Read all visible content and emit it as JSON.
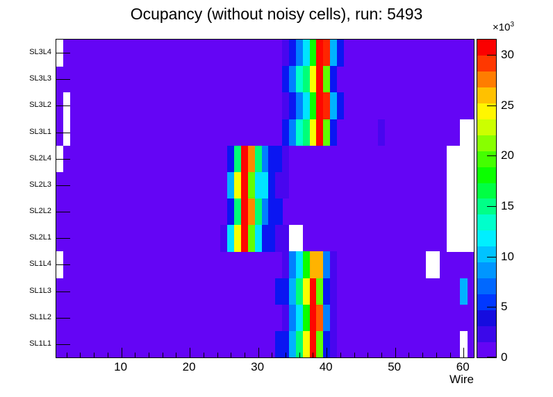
{
  "chart_data": {
    "type": "heatmap",
    "title": "Ocupancy (without noisy cells), run: 5493",
    "xlabel": "Wire",
    "x_range": [
      0.5,
      61.5
    ],
    "x_major_ticks": [
      10,
      20,
      30,
      40,
      50,
      60
    ],
    "x_minor_tick_step": 2,
    "rows_top_to_bottom": [
      "SL3L4",
      "SL3L3",
      "SL3L2",
      "SL3L1",
      "SL2L4",
      "SL2L3",
      "SL2L2",
      "SL2L1",
      "SL1L4",
      "SL1L3",
      "SL1L2",
      "SL1L1"
    ],
    "background_color": "#6405f5",
    "background_value": 500,
    "palette": {
      "violet": "#4806ef",
      "blue": "#0b16f2",
      "dodger": "#0080ff",
      "deepsky": "#00b2ff",
      "cyan": "#00e4ff",
      "turquoise": "#00ffcb",
      "spring": "#00ff77",
      "green": "#0bff00",
      "chartreuse": "#62ff00",
      "yellow": "#f8ff00",
      "amber": "#ffb300",
      "orange": "#ff8800",
      "orangered": "#ff5c00",
      "red2": "#ff2500",
      "red": "#ff0600",
      "white": "#ffffff"
    },
    "colorbar": {
      "scale_label": "×10",
      "scale_exp": "3",
      "ticks": [
        0,
        5,
        10,
        15,
        20,
        25,
        30
      ],
      "max": 31.5,
      "colors_bottom_to_top": [
        "#6405f5",
        "#3b08ea",
        "#150cdf",
        "#0038ff",
        "#0068ff",
        "#0096ff",
        "#00c3ff",
        "#00efff",
        "#00ffcb",
        "#00ff87",
        "#00ff43",
        "#0bff00",
        "#44ff00",
        "#88ff00",
        "#ccff00",
        "#fff600",
        "#ffc100",
        "#ff7d00",
        "#ff3800",
        "#fb0000"
      ]
    },
    "cells": [
      {
        "row": "SL3L4",
        "wire": 34,
        "color": "violet",
        "value": 2000
      },
      {
        "row": "SL3L4",
        "wire": 35,
        "color": "blue",
        "value": 5000
      },
      {
        "row": "SL3L4",
        "wire": 36,
        "color": "dodger",
        "value": 8500
      },
      {
        "row": "SL3L4",
        "wire": 37,
        "color": "cyan",
        "value": 12000
      },
      {
        "row": "SL3L4",
        "wire": 38,
        "color": "green",
        "value": 20000
      },
      {
        "row": "SL3L4",
        "wire": 39,
        "color": "red",
        "value": 31000
      },
      {
        "row": "SL3L4",
        "wire": 40,
        "color": "red2",
        "value": 30000
      },
      {
        "row": "SL3L4",
        "wire": 41,
        "color": "deepsky",
        "value": 10500
      },
      {
        "row": "SL3L4",
        "wire": 42,
        "color": "blue",
        "value": 5000
      },
      {
        "row": "SL3L4",
        "wire": 1,
        "color": "white",
        "value": null
      },
      {
        "row": "SL3L3",
        "wire": 34,
        "color": "blue",
        "value": 5000
      },
      {
        "row": "SL3L3",
        "wire": 35,
        "color": "dodger",
        "value": 8500
      },
      {
        "row": "SL3L3",
        "wire": 36,
        "color": "turquoise",
        "value": 14500
      },
      {
        "row": "SL3L3",
        "wire": 37,
        "color": "spring",
        "value": 16500
      },
      {
        "row": "SL3L3",
        "wire": 38,
        "color": "yellow",
        "value": 26000
      },
      {
        "row": "SL3L3",
        "wire": 39,
        "color": "red",
        "value": 31000
      },
      {
        "row": "SL3L3",
        "wire": 40,
        "color": "chartreuse",
        "value": 22500
      },
      {
        "row": "SL3L3",
        "wire": 41,
        "color": "blue",
        "value": 5000
      },
      {
        "row": "SL3L2",
        "wire": 34,
        "color": "violet",
        "value": 2000
      },
      {
        "row": "SL3L2",
        "wire": 35,
        "color": "blue",
        "value": 5000
      },
      {
        "row": "SL3L2",
        "wire": 36,
        "color": "dodger",
        "value": 8500
      },
      {
        "row": "SL3L2",
        "wire": 37,
        "color": "cyan",
        "value": 12000
      },
      {
        "row": "SL3L2",
        "wire": 38,
        "color": "green",
        "value": 20000
      },
      {
        "row": "SL3L2",
        "wire": 39,
        "color": "red",
        "value": 31000
      },
      {
        "row": "SL3L2",
        "wire": 40,
        "color": "red2",
        "value": 30000
      },
      {
        "row": "SL3L2",
        "wire": 41,
        "color": "deepsky",
        "value": 10500
      },
      {
        "row": "SL3L2",
        "wire": 42,
        "color": "blue",
        "value": 5000
      },
      {
        "row": "SL3L2",
        "wire": 2,
        "color": "white",
        "value": null
      },
      {
        "row": "SL3L1",
        "wire": 34,
        "color": "blue",
        "value": 5000
      },
      {
        "row": "SL3L1",
        "wire": 35,
        "color": "dodger",
        "value": 8500
      },
      {
        "row": "SL3L1",
        "wire": 36,
        "color": "turquoise",
        "value": 14500
      },
      {
        "row": "SL3L1",
        "wire": 37,
        "color": "spring",
        "value": 16500
      },
      {
        "row": "SL3L1",
        "wire": 38,
        "color": "yellow",
        "value": 26000
      },
      {
        "row": "SL3L1",
        "wire": 39,
        "color": "red",
        "value": 31000
      },
      {
        "row": "SL3L1",
        "wire": 40,
        "color": "chartreuse",
        "value": 22500
      },
      {
        "row": "SL3L1",
        "wire": 41,
        "color": "blue",
        "value": 5000
      },
      {
        "row": "SL3L1",
        "wire": 48,
        "color": "violet",
        "value": 2000
      },
      {
        "row": "SL3L1",
        "wire": 2,
        "color": "white",
        "value": null
      },
      {
        "row": "SL3L1",
        "wire": 60,
        "color": "white",
        "value": null
      },
      {
        "row": "SL3L1",
        "wire": 61,
        "color": "white",
        "value": null
      },
      {
        "row": "SL2L4",
        "wire": 26,
        "color": "blue",
        "value": 5000
      },
      {
        "row": "SL2L4",
        "wire": 27,
        "color": "spring",
        "value": 16500
      },
      {
        "row": "SL2L4",
        "wire": 28,
        "color": "red",
        "value": 31000
      },
      {
        "row": "SL2L4",
        "wire": 29,
        "color": "orange",
        "value": 28500
      },
      {
        "row": "SL2L4",
        "wire": 30,
        "color": "spring",
        "value": 16500
      },
      {
        "row": "SL2L4",
        "wire": 31,
        "color": "dodger",
        "value": 8500
      },
      {
        "row": "SL2L4",
        "wire": 32,
        "color": "blue",
        "value": 5000
      },
      {
        "row": "SL2L4",
        "wire": 33,
        "color": "blue",
        "value": 5000
      },
      {
        "row": "SL2L4",
        "wire": 34,
        "color": "violet",
        "value": 2000
      },
      {
        "row": "SL2L4",
        "wire": 1,
        "color": "white",
        "value": null
      },
      {
        "row": "SL2L4",
        "wire": 58,
        "color": "white",
        "value": null
      },
      {
        "row": "SL2L4",
        "wire": 59,
        "color": "white",
        "value": null
      },
      {
        "row": "SL2L4",
        "wire": 60,
        "color": "white",
        "value": null
      },
      {
        "row": "SL2L4",
        "wire": 61,
        "color": "white",
        "value": null
      },
      {
        "row": "SL2L3",
        "wire": 26,
        "color": "deepsky",
        "value": 10500
      },
      {
        "row": "SL2L3",
        "wire": 27,
        "color": "yellow",
        "value": 26000
      },
      {
        "row": "SL2L3",
        "wire": 28,
        "color": "red",
        "value": 31000
      },
      {
        "row": "SL2L3",
        "wire": 29,
        "color": "chartreuse",
        "value": 22500
      },
      {
        "row": "SL2L3",
        "wire": 30,
        "color": "cyan",
        "value": 12000
      },
      {
        "row": "SL2L3",
        "wire": 31,
        "color": "cyan",
        "value": 12000
      },
      {
        "row": "SL2L3",
        "wire": 32,
        "color": "blue",
        "value": 5000
      },
      {
        "row": "SL2L3",
        "wire": 33,
        "color": "violet",
        "value": 2000
      },
      {
        "row": "SL2L3",
        "wire": 34,
        "color": "violet",
        "value": 2000
      },
      {
        "row": "SL2L3",
        "wire": 58,
        "color": "white",
        "value": null
      },
      {
        "row": "SL2L3",
        "wire": 59,
        "color": "white",
        "value": null
      },
      {
        "row": "SL2L3",
        "wire": 60,
        "color": "white",
        "value": null
      },
      {
        "row": "SL2L3",
        "wire": 61,
        "color": "white",
        "value": null
      },
      {
        "row": "SL2L2",
        "wire": 26,
        "color": "blue",
        "value": 5000
      },
      {
        "row": "SL2L2",
        "wire": 27,
        "color": "spring",
        "value": 16500
      },
      {
        "row": "SL2L2",
        "wire": 28,
        "color": "red",
        "value": 31000
      },
      {
        "row": "SL2L2",
        "wire": 29,
        "color": "orange",
        "value": 28500
      },
      {
        "row": "SL2L2",
        "wire": 30,
        "color": "spring",
        "value": 16500
      },
      {
        "row": "SL2L2",
        "wire": 31,
        "color": "dodger",
        "value": 8500
      },
      {
        "row": "SL2L2",
        "wire": 32,
        "color": "blue",
        "value": 5000
      },
      {
        "row": "SL2L2",
        "wire": 33,
        "color": "blue",
        "value": 5000
      },
      {
        "row": "SL2L2",
        "wire": 58,
        "color": "white",
        "value": null
      },
      {
        "row": "SL2L2",
        "wire": 59,
        "color": "white",
        "value": null
      },
      {
        "row": "SL2L2",
        "wire": 60,
        "color": "white",
        "value": null
      },
      {
        "row": "SL2L2",
        "wire": 61,
        "color": "white",
        "value": null
      },
      {
        "row": "SL2L1",
        "wire": 25,
        "color": "violet",
        "value": 2000
      },
      {
        "row": "SL2L1",
        "wire": 26,
        "color": "cyan",
        "value": 12000
      },
      {
        "row": "SL2L1",
        "wire": 27,
        "color": "yellow",
        "value": 26000
      },
      {
        "row": "SL2L1",
        "wire": 28,
        "color": "red",
        "value": 31000
      },
      {
        "row": "SL2L1",
        "wire": 29,
        "color": "chartreuse",
        "value": 22500
      },
      {
        "row": "SL2L1",
        "wire": 30,
        "color": "cyan",
        "value": 12000
      },
      {
        "row": "SL2L1",
        "wire": 31,
        "color": "blue",
        "value": 5000
      },
      {
        "row": "SL2L1",
        "wire": 32,
        "color": "blue",
        "value": 5000
      },
      {
        "row": "SL2L1",
        "wire": 33,
        "color": "violet",
        "value": 2000
      },
      {
        "row": "SL2L1",
        "wire": 34,
        "color": "violet",
        "value": 2000
      },
      {
        "row": "SL2L1",
        "wire": 35,
        "color": "white",
        "value": null
      },
      {
        "row": "SL2L1",
        "wire": 36,
        "color": "white",
        "value": null
      },
      {
        "row": "SL2L1",
        "wire": 58,
        "color": "white",
        "value": null
      },
      {
        "row": "SL2L1",
        "wire": 59,
        "color": "white",
        "value": null
      },
      {
        "row": "SL2L1",
        "wire": 60,
        "color": "white",
        "value": null
      },
      {
        "row": "SL2L1",
        "wire": 61,
        "color": "white",
        "value": null
      },
      {
        "row": "SL1L4",
        "wire": 34,
        "color": "violet",
        "value": 2000
      },
      {
        "row": "SL1L4",
        "wire": 35,
        "color": "dodger",
        "value": 8500
      },
      {
        "row": "SL1L4",
        "wire": 36,
        "color": "cyan",
        "value": 12000
      },
      {
        "row": "SL1L4",
        "wire": 37,
        "color": "green",
        "value": 20000
      },
      {
        "row": "SL1L4",
        "wire": 38,
        "color": "amber",
        "value": 27500
      },
      {
        "row": "SL1L4",
        "wire": 39,
        "color": "amber",
        "value": 27500
      },
      {
        "row": "SL1L4",
        "wire": 40,
        "color": "dodger",
        "value": 8500
      },
      {
        "row": "SL1L4",
        "wire": 41,
        "color": "violet",
        "value": 2000
      },
      {
        "row": "SL1L4",
        "wire": 1,
        "color": "white",
        "value": null
      },
      {
        "row": "SL1L4",
        "wire": 55,
        "color": "white",
        "value": null
      },
      {
        "row": "SL1L4",
        "wire": 56,
        "color": "white",
        "value": null
      },
      {
        "row": "SL1L3",
        "wire": 33,
        "color": "blue",
        "value": 5000
      },
      {
        "row": "SL1L3",
        "wire": 34,
        "color": "blue",
        "value": 5000
      },
      {
        "row": "SL1L3",
        "wire": 35,
        "color": "deepsky",
        "value": 10500
      },
      {
        "row": "SL1L3",
        "wire": 36,
        "color": "spring",
        "value": 16500
      },
      {
        "row": "SL1L3",
        "wire": 37,
        "color": "yellow",
        "value": 26000
      },
      {
        "row": "SL1L3",
        "wire": 38,
        "color": "red",
        "value": 31000
      },
      {
        "row": "SL1L3",
        "wire": 39,
        "color": "chartreuse",
        "value": 22500
      },
      {
        "row": "SL1L3",
        "wire": 40,
        "color": "blue",
        "value": 5000
      },
      {
        "row": "SL1L3",
        "wire": 41,
        "color": "violet",
        "value": 2000
      },
      {
        "row": "SL1L3",
        "wire": 60,
        "color": "deepsky",
        "value": 10500
      },
      {
        "row": "SL1L2",
        "wire": 34,
        "color": "violet",
        "value": 2000
      },
      {
        "row": "SL1L2",
        "wire": 35,
        "color": "dodger",
        "value": 8500
      },
      {
        "row": "SL1L2",
        "wire": 36,
        "color": "cyan",
        "value": 12000
      },
      {
        "row": "SL1L2",
        "wire": 37,
        "color": "green",
        "value": 20000
      },
      {
        "row": "SL1L2",
        "wire": 38,
        "color": "red",
        "value": 31000
      },
      {
        "row": "SL1L2",
        "wire": 39,
        "color": "orangered",
        "value": 29000
      },
      {
        "row": "SL1L2",
        "wire": 40,
        "color": "dodger",
        "value": 8500
      },
      {
        "row": "SL1L2",
        "wire": 41,
        "color": "violet",
        "value": 2000
      },
      {
        "row": "SL1L1",
        "wire": 33,
        "color": "blue",
        "value": 5000
      },
      {
        "row": "SL1L1",
        "wire": 34,
        "color": "blue",
        "value": 5000
      },
      {
        "row": "SL1L1",
        "wire": 35,
        "color": "deepsky",
        "value": 10500
      },
      {
        "row": "SL1L1",
        "wire": 36,
        "color": "spring",
        "value": 16500
      },
      {
        "row": "SL1L1",
        "wire": 37,
        "color": "yellow",
        "value": 26000
      },
      {
        "row": "SL1L1",
        "wire": 38,
        "color": "red",
        "value": 31000
      },
      {
        "row": "SL1L1",
        "wire": 39,
        "color": "chartreuse",
        "value": 22500
      },
      {
        "row": "SL1L1",
        "wire": 40,
        "color": "blue",
        "value": 5000
      },
      {
        "row": "SL1L1",
        "wire": 41,
        "color": "violet",
        "value": 2000
      },
      {
        "row": "SL1L1",
        "wire": 60,
        "color": "white",
        "value": null
      }
    ]
  }
}
